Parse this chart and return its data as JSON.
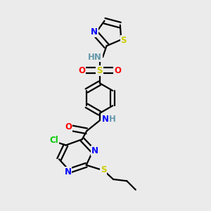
{
  "bg_color": "#ebebeb",
  "atom_colors": {
    "C": "#000000",
    "N": "#0000ff",
    "O": "#ff0000",
    "S": "#cccc00",
    "Cl": "#00cc00",
    "H": "#6699aa"
  },
  "bond_color": "#000000",
  "bond_width": 1.6,
  "font_size": 8.5,
  "fig_size": [
    3.0,
    3.0
  ],
  "dpi": 100
}
